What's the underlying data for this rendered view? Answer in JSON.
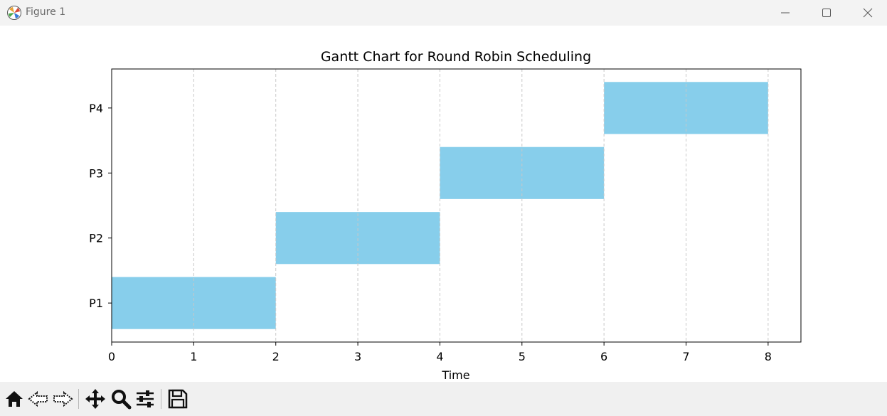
{
  "window": {
    "title": "Figure 1",
    "icons": {
      "app": "matplotlib-icon",
      "minimize": "minimize-icon",
      "maximize": "maximize-icon",
      "close": "close-icon"
    }
  },
  "toolbar": {
    "tools": [
      "home-icon",
      "back-arrow-icon",
      "forward-arrow-icon",
      "pan-icon",
      "zoom-icon",
      "configure-subplots-icon",
      "save-icon"
    ]
  },
  "chart_data": {
    "type": "bar",
    "orientation": "horizontal",
    "title": "Gantt Chart for Round Robin Scheduling",
    "xlabel": "Time",
    "ylabel": "",
    "xlim": [
      0,
      8.4
    ],
    "xticks": [
      0,
      1,
      2,
      3,
      4,
      5,
      6,
      7,
      8
    ],
    "categories": [
      "P1",
      "P2",
      "P3",
      "P4"
    ],
    "tasks": [
      {
        "process": "P1",
        "start": 0,
        "end": 2
      },
      {
        "process": "P2",
        "start": 2,
        "end": 4
      },
      {
        "process": "P3",
        "start": 4,
        "end": 6
      },
      {
        "process": "P4",
        "start": 6,
        "end": 8
      }
    ],
    "bar_color": "#87ceeb",
    "grid": {
      "x": true,
      "y": false,
      "style": "dashed",
      "color": "#c8c8c8"
    }
  }
}
